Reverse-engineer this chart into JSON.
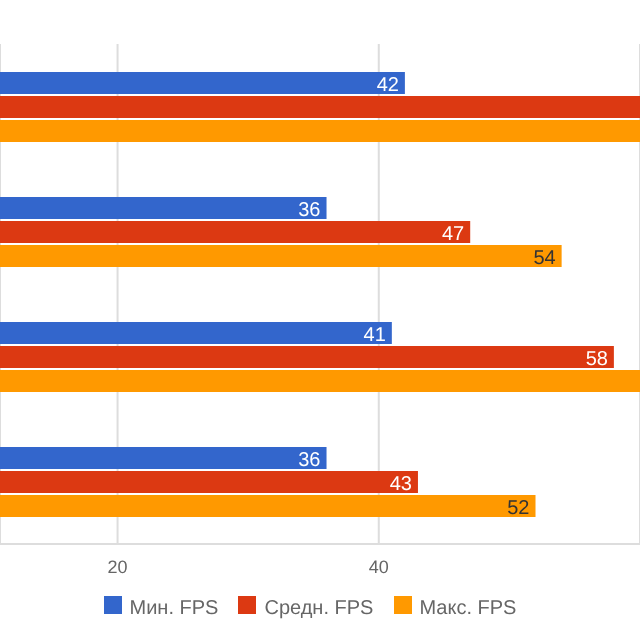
{
  "chart_data": {
    "type": "bar",
    "orientation": "horizontal",
    "categories": [
      null,
      null,
      null,
      null
    ],
    "series": [
      {
        "name": "Мин. FPS",
        "color": "#3366cc",
        "values": [
          42,
          36,
          41,
          36
        ],
        "value_labels": [
          "42",
          "36",
          "41",
          "36"
        ]
      },
      {
        "name": "Средн. FPS",
        "color": "#dc3912",
        "values": [
          60,
          47,
          58,
          43
        ],
        "value_labels": [
          null,
          "47",
          "58",
          "43"
        ]
      },
      {
        "name": "Макс. FPS",
        "color": "#ff9900",
        "values": [
          60,
          54,
          60,
          52
        ],
        "value_labels": [
          null,
          "54",
          null,
          "52"
        ]
      }
    ],
    "xlim": [
      11,
      60
    ],
    "xticks": [
      20,
      40
    ],
    "grid": "x",
    "legend": "bottom"
  }
}
